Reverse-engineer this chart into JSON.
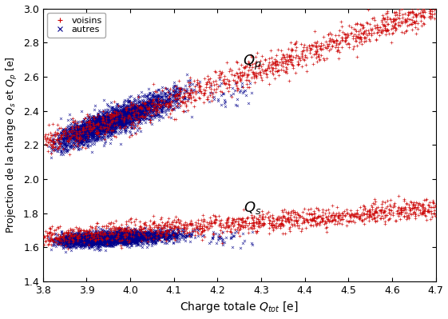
{
  "title": "",
  "xlabel": "Charge totale $Q_{tot}$ [e]",
  "ylabel": "Projection de la charge $Q_s$ et $Q_p$ [e]",
  "xlim": [
    3.8,
    4.7
  ],
  "ylim": [
    1.4,
    3.0
  ],
  "xticks": [
    3.8,
    3.9,
    4.0,
    4.1,
    4.2,
    4.3,
    4.4,
    4.5,
    4.6,
    4.7
  ],
  "yticks": [
    1.4,
    1.6,
    1.8,
    2.0,
    2.2,
    2.4,
    2.6,
    2.8,
    3.0
  ],
  "legend_labels": [
    "voisins",
    "autres"
  ],
  "color_voisins": "#cc0000",
  "color_autres": "#00008b",
  "Qp_label": "$Q_p$",
  "Qs_label": "$Q_s$",
  "seed": 42,
  "n_voisins": 1200,
  "n_autres": 3000
}
